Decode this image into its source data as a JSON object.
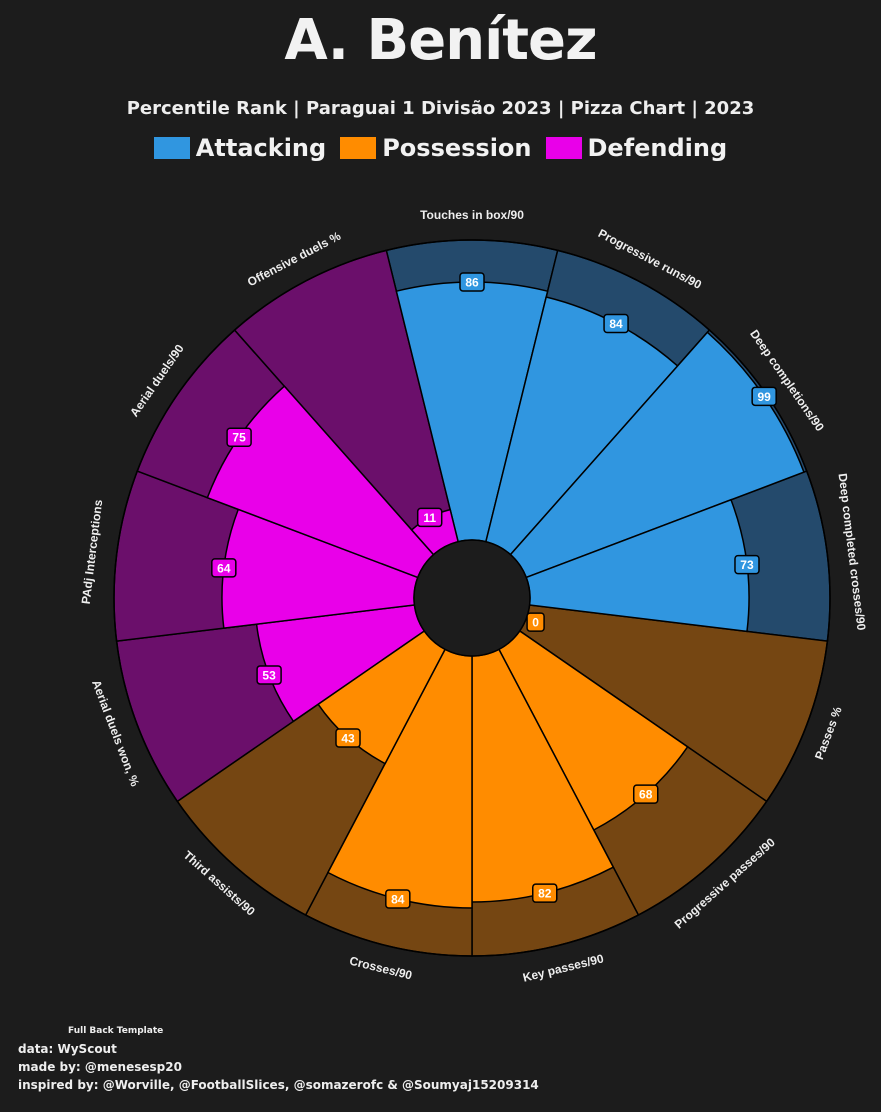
{
  "title": "A. Benítez",
  "subtitle": "Percentile Rank | Paraguai 1 Divisão 2023 | Pizza Chart | 2023",
  "legend": [
    {
      "label": "Attacking",
      "color": "#3096e0"
    },
    {
      "label": "Possession",
      "color": "#ff8c00"
    },
    {
      "label": "Defending",
      "color": "#e900e9"
    }
  ],
  "footer": {
    "template": "Full Back Template",
    "data_source": "data: WyScout",
    "made_by": "made by: @menesesp20",
    "inspired_by": "inspired by: @Worville, @FootballSlices, @somazerofc & @Soumyaj15209314"
  },
  "chart_data": {
    "type": "pie",
    "variant": "pizza-percentile",
    "title": "A. Benítez",
    "subtitle": "Percentile Rank | Paraguai 1 Divisão 2023 | Pizza Chart | 2023",
    "rlim": [
      0,
      100
    ],
    "legend_placement": "top-center",
    "slices": [
      {
        "label": "Touches in box/90",
        "value": 86,
        "group": "Attacking"
      },
      {
        "label": "Progressive runs/90",
        "value": 84,
        "group": "Attacking"
      },
      {
        "label": "Deep completions/90",
        "value": 99,
        "group": "Attacking"
      },
      {
        "label": "Deep completed crosses/90",
        "value": 73,
        "group": "Attacking"
      },
      {
        "label": "Passes %",
        "value": 0,
        "group": "Possession"
      },
      {
        "label": "Progressive passes/90",
        "value": 68,
        "group": "Possession"
      },
      {
        "label": "Key passes/90",
        "value": 82,
        "group": "Possession"
      },
      {
        "label": "Crosses/90",
        "value": 84,
        "group": "Possession"
      },
      {
        "label": "Third assists/90",
        "value": 43,
        "group": "Possession"
      },
      {
        "label": "Aerial duels won, %",
        "value": 53,
        "group": "Defending"
      },
      {
        "label": "PAdj Interceptions",
        "value": 64,
        "group": "Defending"
      },
      {
        "label": "Aerial duels/90",
        "value": 75,
        "group": "Defending"
      },
      {
        "label": "Offensive duels %",
        "value": 11,
        "group": "Defending"
      }
    ],
    "group_colors": {
      "Attacking": "#3096e0",
      "Possession": "#ff8c00",
      "Defending": "#e900e9"
    },
    "group_bg_colors": {
      "Attacking": "#244a6c",
      "Possession": "#754612",
      "Defending": "#6b0f6b"
    }
  }
}
